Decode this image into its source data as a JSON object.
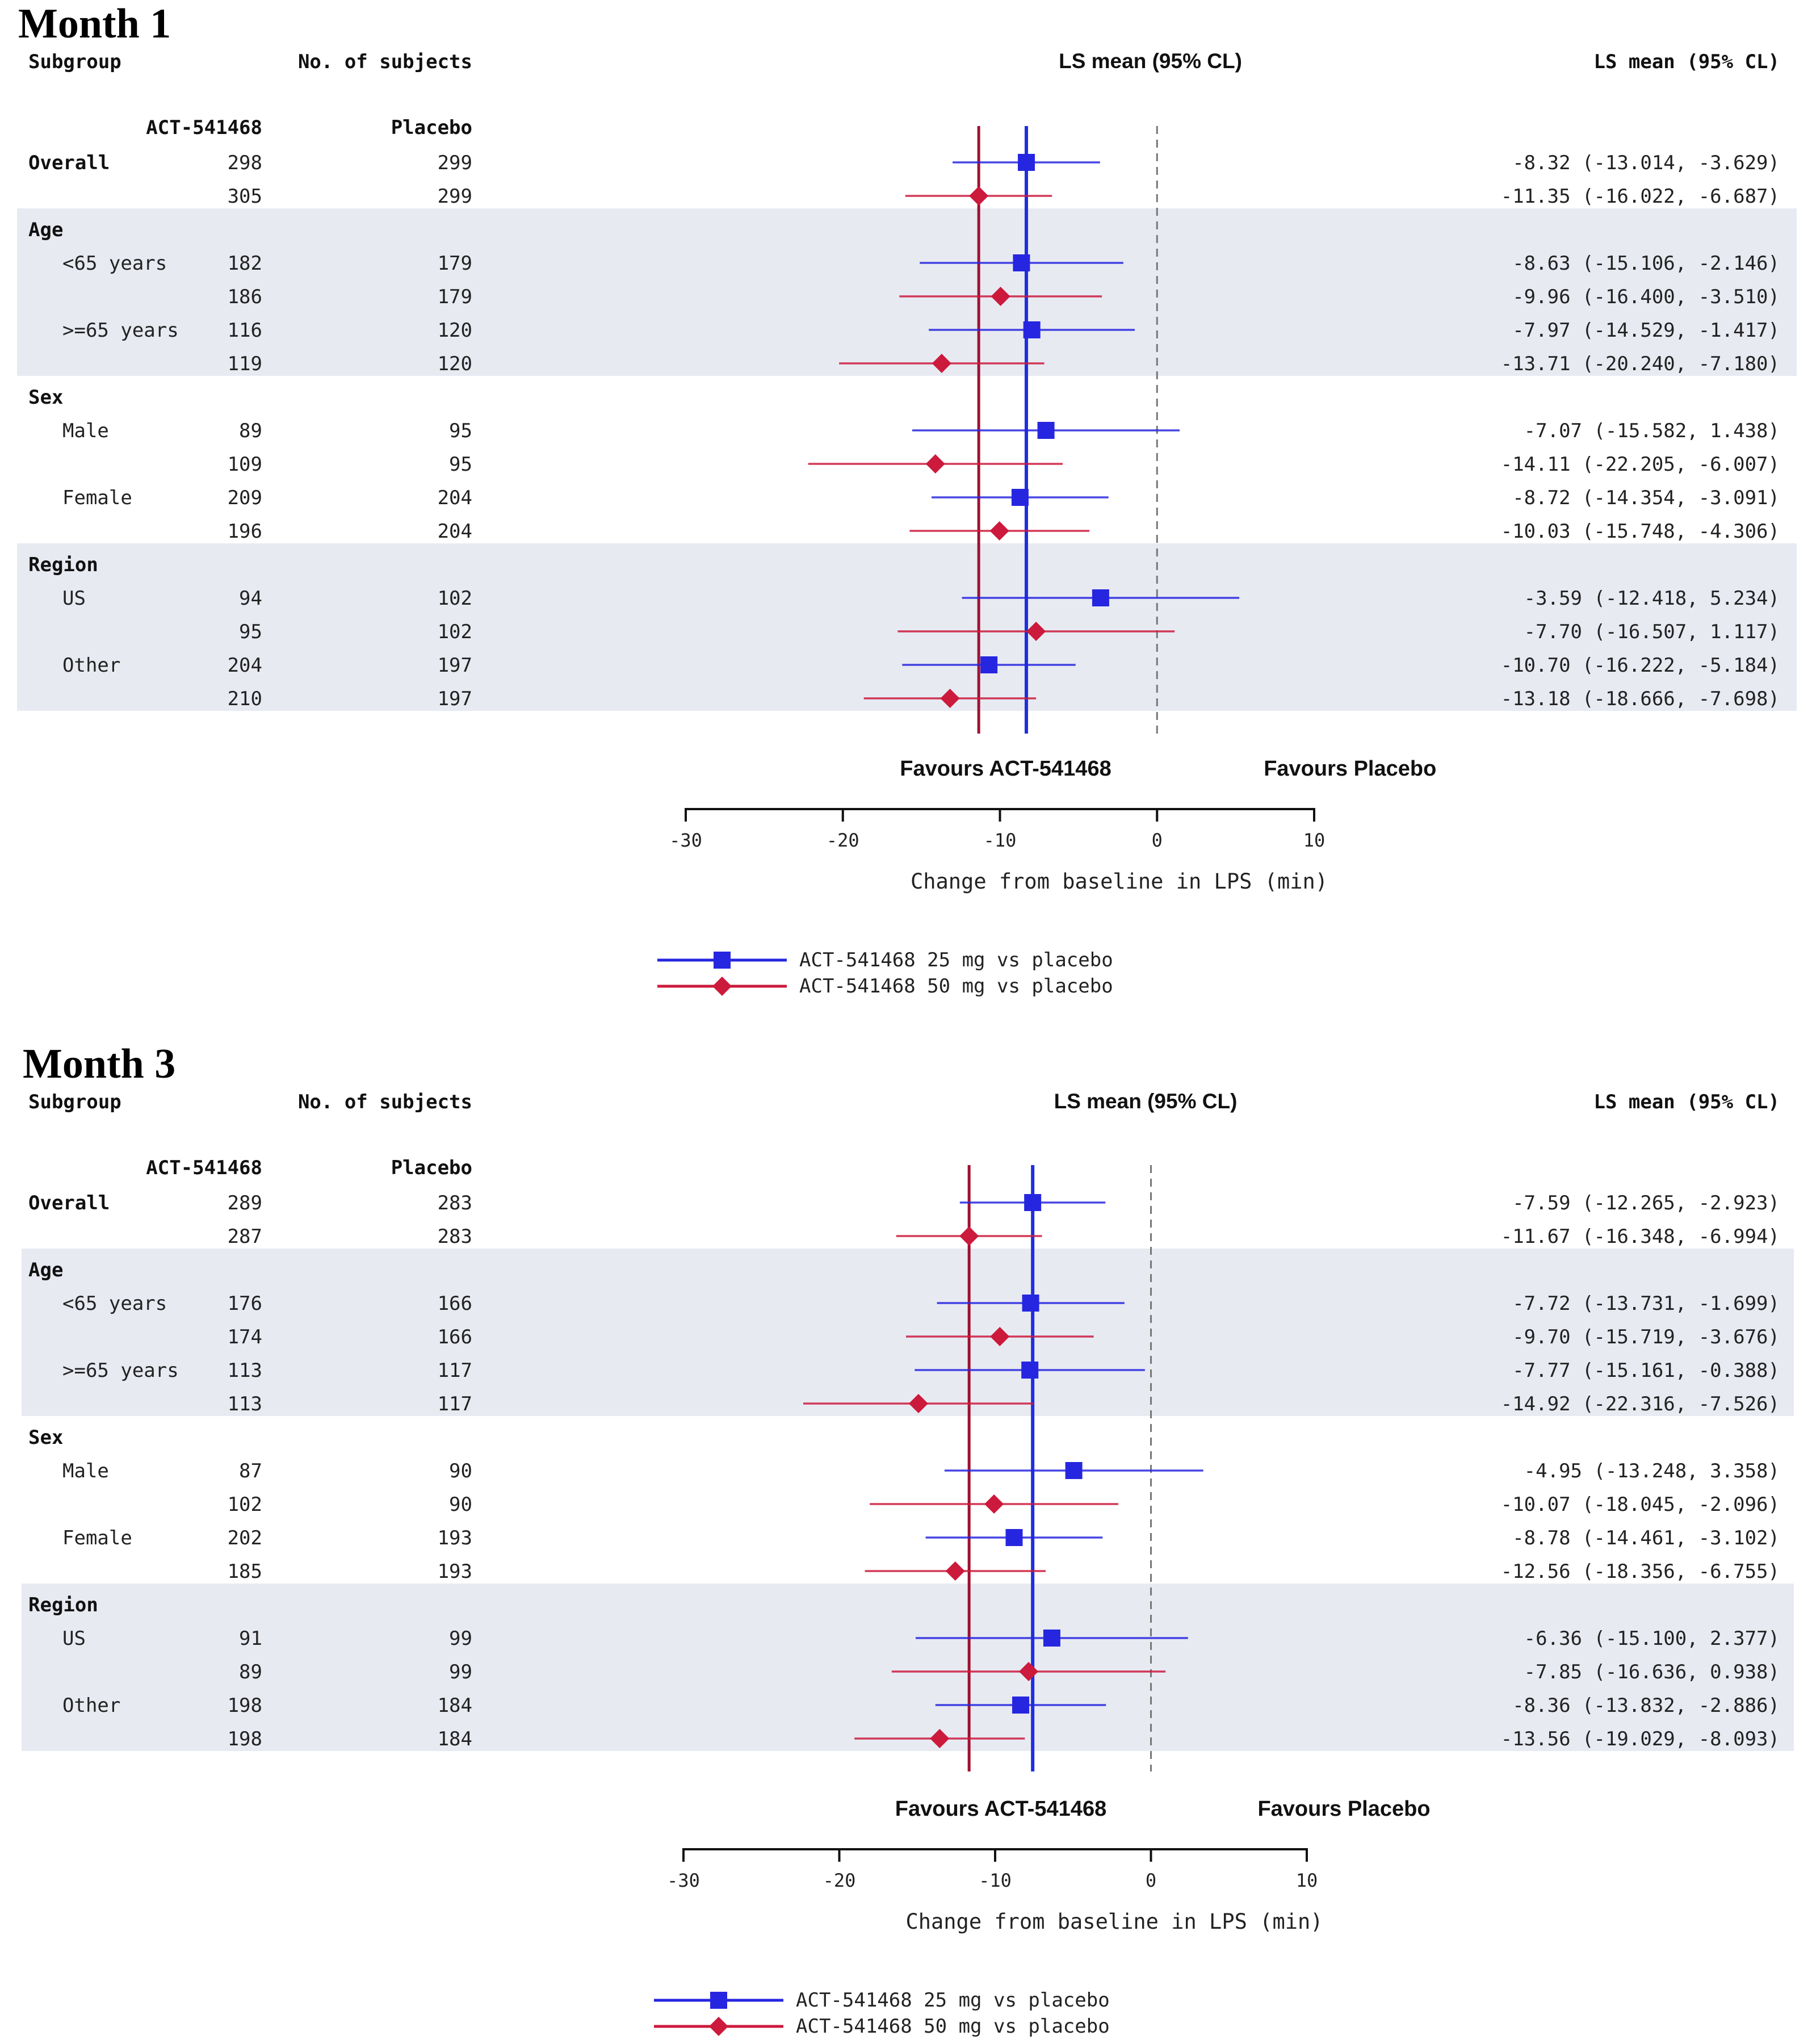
{
  "legend": [
    {
      "label": "ACT-541468 25 mg vs placebo",
      "color": "#2626e0",
      "marker": "square"
    },
    {
      "label": "ACT-541468 50 mg vs placebo",
      "color": "#cc1a3c",
      "marker": "diamond"
    }
  ],
  "chart_data": [
    {
      "type": "forest",
      "title": "Month 1",
      "headers": {
        "subgroup": "Subgroup",
        "n": "No. of subjects",
        "plot": "LS mean (95% CL)",
        "values": "LS mean (95% CL)",
        "drug": "ACT-541468",
        "placebo": "Placebo"
      },
      "xlabel": "Change from baseline in LPS (min)",
      "xlim": [
        -30,
        10
      ],
      "xticks": [
        -30,
        -20,
        -10,
        0,
        10
      ],
      "favours_left": "Favours ACT-541468",
      "favours_right": "Favours Placebo",
      "overall_lines": {
        "dose25": -8.32,
        "dose50": -11.35
      },
      "groups": [
        {
          "name": "Overall",
          "shaded": false,
          "header_row": false,
          "rows": [
            {
              "label": "Overall",
              "series": 0,
              "n_drug": "298",
              "n_placebo": "299",
              "mean": -8.32,
              "lo": -13.014,
              "hi": -3.629,
              "text": "-8.32 (-13.014,   -3.629)"
            },
            {
              "label": "",
              "series": 1,
              "n_drug": "305",
              "n_placebo": "299",
              "mean": -11.35,
              "lo": -16.022,
              "hi": -6.687,
              "text": "-11.35 (-16.022,   -6.687)"
            }
          ]
        },
        {
          "name": "Age",
          "shaded": true,
          "header_row": true,
          "rows": [
            {
              "label": "<65 years",
              "series": 0,
              "n_drug": "182",
              "n_placebo": "179",
              "mean": -8.63,
              "lo": -15.106,
              "hi": -2.146,
              "text": "-8.63 (-15.106,   -2.146)"
            },
            {
              "label": "",
              "series": 1,
              "n_drug": "186",
              "n_placebo": "179",
              "mean": -9.96,
              "lo": -16.4,
              "hi": -3.51,
              "text": "-9.96 (-16.400,   -3.510)"
            },
            {
              "label": ">=65 years",
              "series": 0,
              "n_drug": "116",
              "n_placebo": "120",
              "mean": -7.97,
              "lo": -14.529,
              "hi": -1.417,
              "text": "-7.97 (-14.529,   -1.417)"
            },
            {
              "label": "",
              "series": 1,
              "n_drug": "119",
              "n_placebo": "120",
              "mean": -13.71,
              "lo": -20.24,
              "hi": -7.18,
              "text": "-13.71 (-20.240,   -7.180)"
            }
          ]
        },
        {
          "name": "Sex",
          "shaded": false,
          "header_row": true,
          "rows": [
            {
              "label": "Male",
              "series": 0,
              "n_drug": "89",
              "n_placebo": "95",
              "mean": -7.07,
              "lo": -15.582,
              "hi": 1.438,
              "text": "-7.07 (-15.582,    1.438)"
            },
            {
              "label": "",
              "series": 1,
              "n_drug": "109",
              "n_placebo": "95",
              "mean": -14.11,
              "lo": -22.205,
              "hi": -6.007,
              "text": "-14.11 (-22.205,   -6.007)"
            },
            {
              "label": "Female",
              "series": 0,
              "n_drug": "209",
              "n_placebo": "204",
              "mean": -8.72,
              "lo": -14.354,
              "hi": -3.091,
              "text": "-8.72 (-14.354,   -3.091)"
            },
            {
              "label": "",
              "series": 1,
              "n_drug": "196",
              "n_placebo": "204",
              "mean": -10.03,
              "lo": -15.748,
              "hi": -4.306,
              "text": "-10.03 (-15.748,   -4.306)"
            }
          ]
        },
        {
          "name": "Region",
          "shaded": true,
          "header_row": true,
          "rows": [
            {
              "label": "US",
              "series": 0,
              "n_drug": "94",
              "n_placebo": "102",
              "mean": -3.59,
              "lo": -12.418,
              "hi": 5.234,
              "text": "-3.59 (-12.418,    5.234)"
            },
            {
              "label": "",
              "series": 1,
              "n_drug": "95",
              "n_placebo": "102",
              "mean": -7.7,
              "lo": -16.507,
              "hi": 1.117,
              "text": "-7.70 (-16.507,    1.117)"
            },
            {
              "label": "Other",
              "series": 0,
              "n_drug": "204",
              "n_placebo": "197",
              "mean": -10.7,
              "lo": -16.222,
              "hi": -5.184,
              "text": "-10.70 (-16.222,   -5.184)"
            },
            {
              "label": "",
              "series": 1,
              "n_drug": "210",
              "n_placebo": "197",
              "mean": -13.18,
              "lo": -18.666,
              "hi": -7.698,
              "text": "-13.18 (-18.666,   -7.698)"
            }
          ]
        }
      ]
    },
    {
      "type": "forest",
      "title": "Month 3",
      "headers": {
        "subgroup": "Subgroup",
        "n": "No. of subjects",
        "plot": "LS mean (95% CL)",
        "values": "LS mean (95% CL)",
        "drug": "ACT-541468",
        "placebo": "Placebo"
      },
      "xlabel": "Change from baseline in LPS (min)",
      "xlim": [
        -30,
        10
      ],
      "xticks": [
        -30,
        -20,
        -10,
        0,
        10
      ],
      "favours_left": "Favours ACT-541468",
      "favours_right": "Favours Placebo",
      "overall_lines": {
        "dose25": -7.59,
        "dose50": -11.67
      },
      "groups": [
        {
          "name": "Overall",
          "shaded": false,
          "header_row": false,
          "rows": [
            {
              "label": "Overall",
              "series": 0,
              "n_drug": "289",
              "n_placebo": "283",
              "mean": -7.59,
              "lo": -12.265,
              "hi": -2.923,
              "text": "-7.59 (-12.265,   -2.923)"
            },
            {
              "label": "",
              "series": 1,
              "n_drug": "287",
              "n_placebo": "283",
              "mean": -11.67,
              "lo": -16.348,
              "hi": -6.994,
              "text": "-11.67 (-16.348,   -6.994)"
            }
          ]
        },
        {
          "name": "Age",
          "shaded": true,
          "header_row": true,
          "rows": [
            {
              "label": "<65 years",
              "series": 0,
              "n_drug": "176",
              "n_placebo": "166",
              "mean": -7.72,
              "lo": -13.731,
              "hi": -1.699,
              "text": "-7.72 (-13.731,   -1.699)"
            },
            {
              "label": "",
              "series": 1,
              "n_drug": "174",
              "n_placebo": "166",
              "mean": -9.7,
              "lo": -15.719,
              "hi": -3.676,
              "text": "-9.70 (-15.719,   -3.676)"
            },
            {
              "label": ">=65 years",
              "series": 0,
              "n_drug": "113",
              "n_placebo": "117",
              "mean": -7.77,
              "lo": -15.161,
              "hi": -0.388,
              "text": "-7.77 (-15.161,   -0.388)"
            },
            {
              "label": "",
              "series": 1,
              "n_drug": "113",
              "n_placebo": "117",
              "mean": -14.92,
              "lo": -22.316,
              "hi": -7.526,
              "text": "-14.92 (-22.316,   -7.526)"
            }
          ]
        },
        {
          "name": "Sex",
          "shaded": false,
          "header_row": true,
          "rows": [
            {
              "label": "Male",
              "series": 0,
              "n_drug": "87",
              "n_placebo": "90",
              "mean": -4.95,
              "lo": -13.248,
              "hi": 3.358,
              "text": "-4.95 (-13.248,    3.358)"
            },
            {
              "label": "",
              "series": 1,
              "n_drug": "102",
              "n_placebo": "90",
              "mean": -10.07,
              "lo": -18.045,
              "hi": -2.096,
              "text": "-10.07 (-18.045,   -2.096)"
            },
            {
              "label": "Female",
              "series": 0,
              "n_drug": "202",
              "n_placebo": "193",
              "mean": -8.78,
              "lo": -14.461,
              "hi": -3.102,
              "text": "-8.78 (-14.461,   -3.102)"
            },
            {
              "label": "",
              "series": 1,
              "n_drug": "185",
              "n_placebo": "193",
              "mean": -12.56,
              "lo": -18.356,
              "hi": -6.755,
              "text": "-12.56 (-18.356,   -6.755)"
            }
          ]
        },
        {
          "name": "Region",
          "shaded": true,
          "header_row": true,
          "rows": [
            {
              "label": "US",
              "series": 0,
              "n_drug": "91",
              "n_placebo": "99",
              "mean": -6.36,
              "lo": -15.1,
              "hi": 2.377,
              "text": "-6.36 (-15.100,    2.377)"
            },
            {
              "label": "",
              "series": 1,
              "n_drug": "89",
              "n_placebo": "99",
              "mean": -7.85,
              "lo": -16.636,
              "hi": 0.938,
              "text": "-7.85 (-16.636,    0.938)"
            },
            {
              "label": "Other",
              "series": 0,
              "n_drug": "198",
              "n_placebo": "184",
              "mean": -8.36,
              "lo": -13.832,
              "hi": -2.886,
              "text": "-8.36 (-13.832,   -2.886)"
            },
            {
              "label": "",
              "series": 1,
              "n_drug": "198",
              "n_placebo": "184",
              "mean": -13.56,
              "lo": -19.029,
              "hi": -8.093,
              "text": "-13.56 (-19.029,   -8.093)"
            }
          ]
        }
      ]
    }
  ]
}
